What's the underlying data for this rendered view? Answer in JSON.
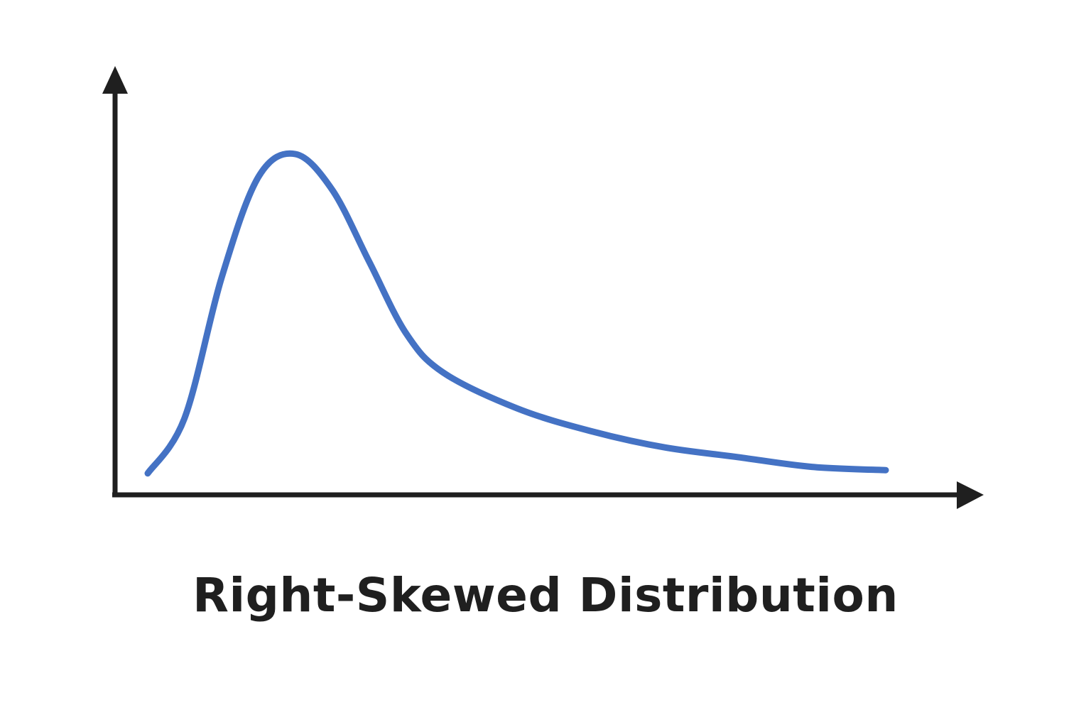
{
  "caption": "Right-Skewed Distribution",
  "colors": {
    "curve": "#4472C4",
    "axes": "#1f1f1f",
    "background": "#ffffff"
  },
  "chart_data": {
    "type": "line",
    "shape": "right-skewed",
    "x": [
      0,
      5,
      10,
      15,
      20,
      25,
      30,
      35,
      40,
      50,
      60,
      70,
      80,
      90,
      100
    ],
    "y": [
      0.02,
      0.19,
      0.62,
      0.93,
      1.0,
      0.89,
      0.67,
      0.45,
      0.33,
      0.22,
      0.15,
      0.1,
      0.07,
      0.04,
      0.03
    ],
    "xlim": [
      0,
      100
    ],
    "ylim": [
      0,
      1.05
    ],
    "xlabel": "",
    "ylabel": "",
    "grid": false,
    "legend": "none"
  }
}
